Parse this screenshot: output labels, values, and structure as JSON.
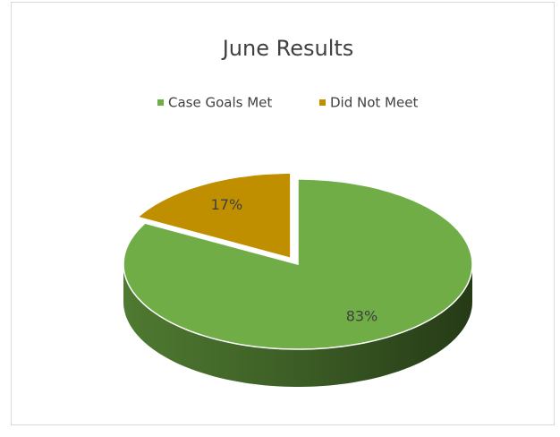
{
  "chart_data": {
    "type": "pie",
    "title": "June Results",
    "categories": [
      "Case Goals Met",
      "Did Not Meet"
    ],
    "values": [
      83,
      17
    ],
    "value_labels": [
      "83%",
      "17%"
    ],
    "colors": [
      "#70ad47",
      "#bf8f00"
    ],
    "exploded": [
      false,
      true
    ],
    "three_d": true,
    "legend": "top"
  }
}
